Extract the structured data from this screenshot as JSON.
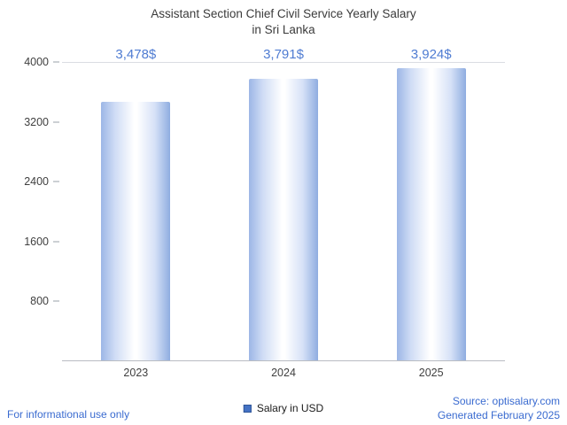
{
  "chart_data": {
    "type": "bar",
    "title": "Assistant Section Chief Civil Service Yearly Salary in Sri Lanka",
    "title_lines": [
      "Assistant Section Chief Civil Service Yearly Salary",
      "in Sri Lanka"
    ],
    "categories": [
      "2023",
      "2024",
      "2025"
    ],
    "values": [
      3478,
      3791,
      3924
    ],
    "value_labels": [
      "3,478$",
      "3,791$",
      "3,924$"
    ],
    "yticks": [
      4000,
      3200,
      2400,
      1600,
      800
    ],
    "ylim": [
      0,
      4000
    ],
    "grid": "top-gridline-and-baseline-only",
    "legend_position": "bottom-center",
    "legend": [
      {
        "label": "Salary in USD",
        "color": "#4472c4"
      }
    ],
    "bar_gradient": [
      "#9cb6e6",
      "#ffffff",
      "#8fade0"
    ]
  },
  "footer": {
    "disclaimer": "For informational use only",
    "source": "Source: optisalary.com",
    "generated": "Generated February 2025"
  },
  "colors": {
    "accent_text": "#4f7cd2",
    "title_text": "#3b3b3b",
    "axis_text": "#404040",
    "link_text": "#3a6bd0"
  }
}
